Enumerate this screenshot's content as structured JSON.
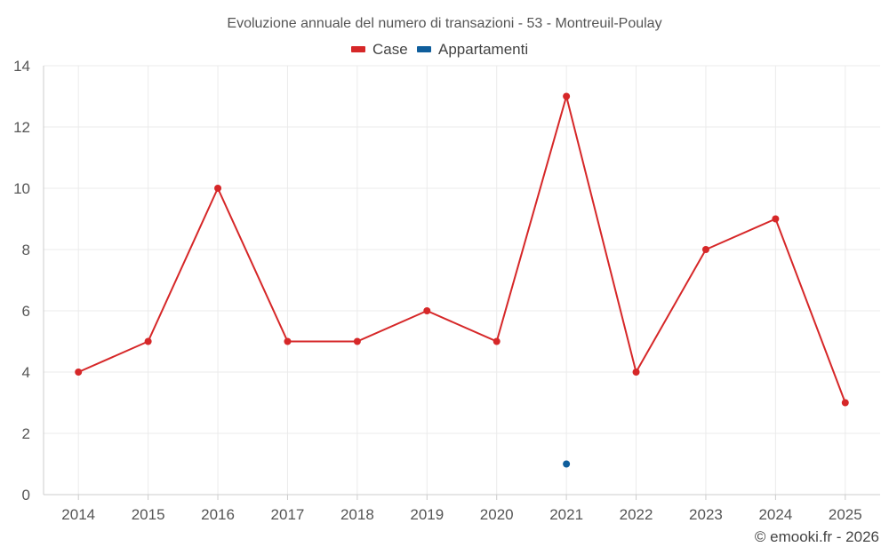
{
  "chart_data": {
    "type": "line",
    "title": "Evoluzione annuale del numero di transazioni - 53 - Montreuil-Poulay",
    "categories": [
      "2014",
      "2015",
      "2016",
      "2017",
      "2018",
      "2019",
      "2020",
      "2021",
      "2022",
      "2023",
      "2024",
      "2025"
    ],
    "series": [
      {
        "name": "Case",
        "color": "#d62728",
        "values": [
          4,
          5,
          10,
          5,
          5,
          6,
          5,
          13,
          4,
          8,
          9,
          3
        ]
      },
      {
        "name": "Appartamenti",
        "color": "#0f5e9c",
        "values": [
          null,
          null,
          null,
          null,
          null,
          null,
          null,
          1,
          null,
          null,
          null,
          null
        ]
      }
    ],
    "ylim": [
      0,
      14
    ],
    "yticks": [
      "0",
      "2",
      "4",
      "6",
      "8",
      "10",
      "12",
      "14"
    ],
    "grid": true,
    "legend": "top-center",
    "xlabel": "",
    "ylabel": ""
  },
  "credit": "© emooki.fr - 2026"
}
